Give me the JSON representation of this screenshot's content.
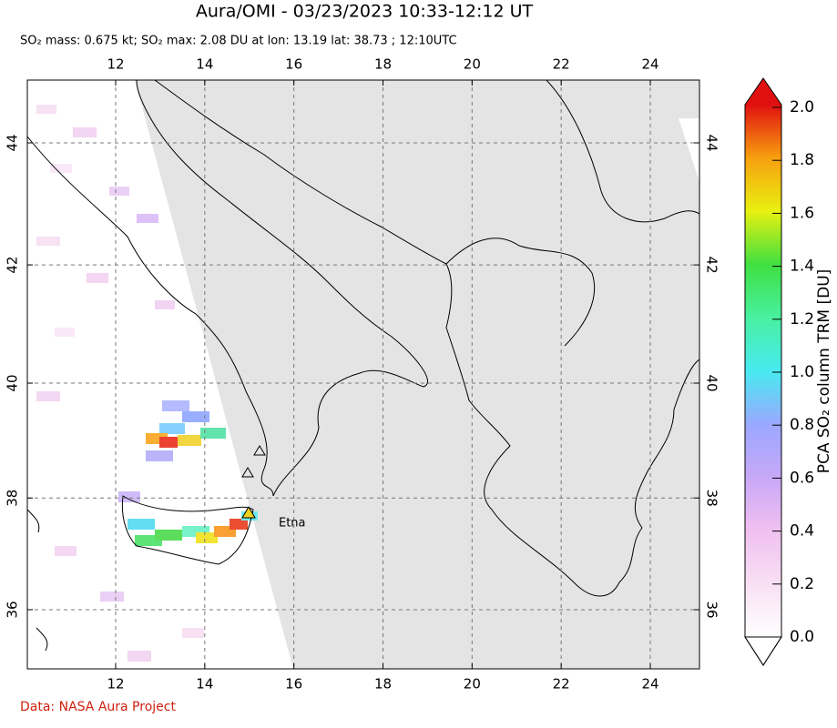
{
  "header": {
    "title": "Aura/OMI - 03/23/2023 10:33-12:12 UT",
    "subtitle": "SO₂ mass: 0.675 kt; SO₂ max: 2.08 DU at lon: 13.19 lat: 38.73 ; 12:10UTC"
  },
  "map": {
    "lon_ticks": [
      12,
      14,
      16,
      18,
      20,
      22,
      24
    ],
    "lat_ticks": [
      36,
      38,
      40,
      42,
      44
    ],
    "volcano_label": "Etna"
  },
  "colorbar": {
    "label": "PCA SO₂ column TRM [DU]",
    "ticks": [
      {
        "value": 0,
        "label": "0.0"
      },
      {
        "value": 0.2,
        "label": "0.2"
      },
      {
        "value": 0.4,
        "label": "0.4"
      },
      {
        "value": 0.6,
        "label": "0.6"
      },
      {
        "value": 0.8,
        "label": "0.8"
      },
      {
        "value": 1,
        "label": "1.0"
      },
      {
        "value": 1.2,
        "label": "1.2"
      },
      {
        "value": 1.4,
        "label": "1.4"
      },
      {
        "value": 1.6,
        "label": "1.6"
      },
      {
        "value": 1.8,
        "label": "1.8"
      },
      {
        "value": 2,
        "label": "2.0"
      }
    ]
  },
  "footer": {
    "credit": "Data: NASA Aura Project"
  }
}
